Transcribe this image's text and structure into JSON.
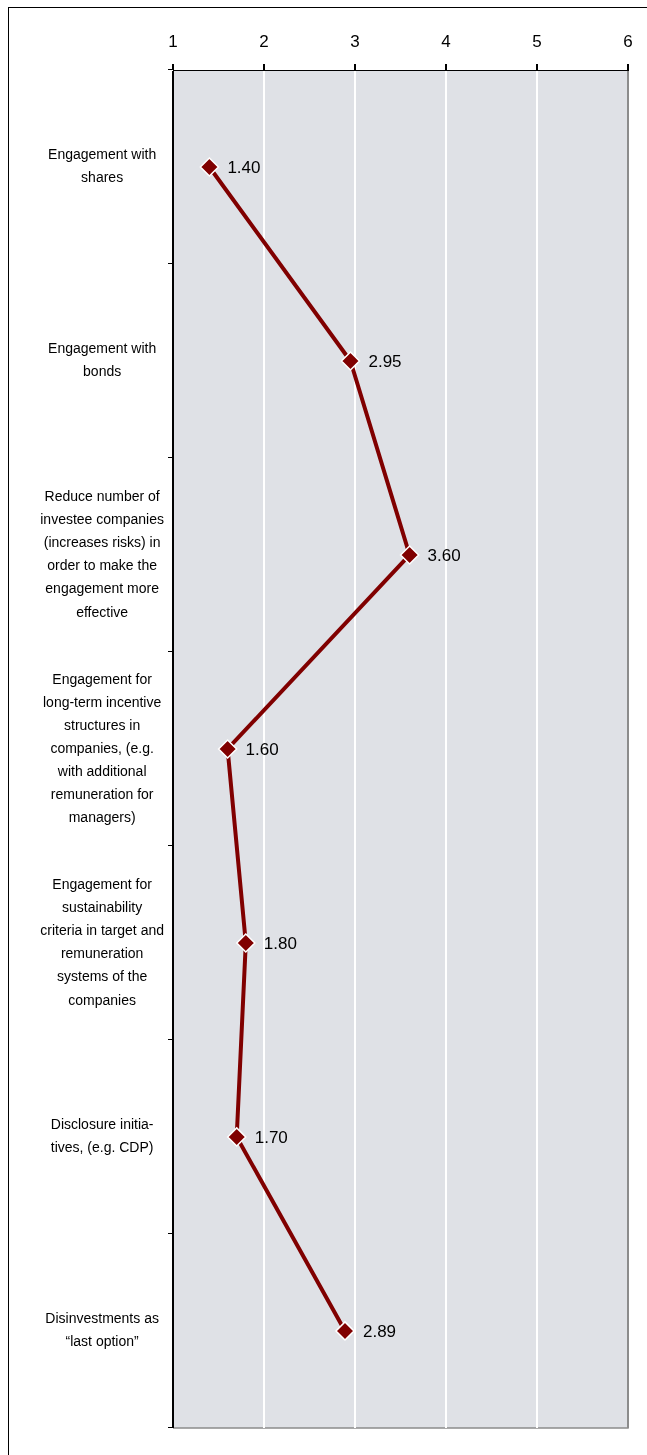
{
  "chart_data": {
    "type": "line",
    "orientation": "horizontal",
    "categories": [
      "Engagement with\nshares",
      "Engagement with\nbonds",
      "Reduce number of\ninvestee companies\n(increases risks) in\norder to make the\nengagement more\neffective",
      "Engagement for\nlong-term incentive\nstructures in\ncompanies, (e.g.\nwith additional\nremuneration for\nmanagers)",
      "Engagement for\nsustainability\ncriteria in target and\nremuneration\nsystems of the\ncompanies",
      "Disclosure initia-\ntives, (e.g. CDP)",
      "Disinvestments as\n“last option”"
    ],
    "values": [
      1.4,
      2.95,
      3.6,
      1.6,
      1.8,
      1.7,
      2.89
    ],
    "value_labels": [
      "1.40",
      "2.95",
      "3.60",
      "1.60",
      "1.80",
      "1.70",
      "2.89"
    ],
    "color": "#800000",
    "xlim": [
      1,
      6
    ],
    "xticks": [
      1,
      2,
      3,
      4,
      5,
      6
    ],
    "grid": "x",
    "marker": "diamond",
    "line_style": "solid"
  }
}
